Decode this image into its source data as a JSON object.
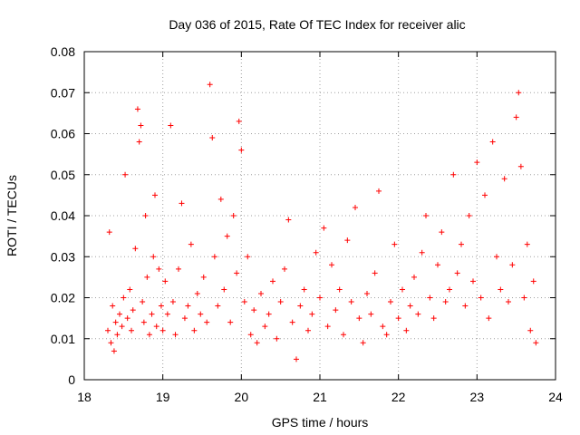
{
  "chart_data": {
    "type": "scatter",
    "title": "Day 036 of 2015, Rate Of TEC Index for receiver alic",
    "xlabel": "GPS time / hours",
    "ylabel": "ROTI / TECUs",
    "xlim": [
      18,
      24
    ],
    "ylim": [
      0,
      0.08
    ],
    "x_ticks": [
      18,
      19,
      20,
      21,
      22,
      23,
      24
    ],
    "x_tick_labels": [
      "18",
      "19",
      "20",
      "21",
      "22",
      "23",
      "24"
    ],
    "y_ticks": [
      0,
      0.01,
      0.02,
      0.03,
      0.04,
      0.05,
      0.06,
      0.07,
      0.08
    ],
    "y_tick_labels": [
      "0",
      "0.01",
      "0.02",
      "0.03",
      "0.04",
      "0.05",
      "0.06",
      "0.07",
      "0.08"
    ],
    "grid": true,
    "marker": "+",
    "color": "#ff0000",
    "series": [
      {
        "name": "ROTI",
        "x": [
          18.3,
          18.32,
          18.34,
          18.36,
          18.38,
          18.4,
          18.42,
          18.45,
          18.48,
          18.5,
          18.52,
          18.55,
          18.58,
          18.6,
          18.62,
          18.65,
          18.68,
          18.7,
          18.72,
          18.74,
          18.76,
          18.78,
          18.8,
          18.83,
          18.86,
          18.88,
          18.9,
          18.92,
          18.95,
          18.98,
          19.0,
          19.03,
          19.06,
          19.1,
          19.13,
          19.16,
          19.2,
          19.24,
          19.28,
          19.32,
          19.36,
          19.4,
          19.44,
          19.48,
          19.52,
          19.56,
          19.6,
          19.63,
          19.66,
          19.7,
          19.74,
          19.78,
          19.82,
          19.86,
          19.9,
          19.94,
          19.97,
          20.0,
          20.04,
          20.08,
          20.12,
          20.16,
          20.2,
          20.25,
          20.3,
          20.35,
          20.4,
          20.45,
          20.5,
          20.55,
          20.6,
          20.65,
          20.7,
          20.75,
          20.8,
          20.85,
          20.9,
          20.95,
          21.0,
          21.05,
          21.1,
          21.15,
          21.2,
          21.25,
          21.3,
          21.35,
          21.4,
          21.45,
          21.5,
          21.55,
          21.6,
          21.65,
          21.7,
          21.75,
          21.8,
          21.85,
          21.9,
          21.95,
          22.0,
          22.05,
          22.1,
          22.15,
          22.2,
          22.25,
          22.3,
          22.35,
          22.4,
          22.45,
          22.5,
          22.55,
          22.6,
          22.65,
          22.7,
          22.75,
          22.8,
          22.85,
          22.9,
          22.95,
          23.0,
          23.05,
          23.1,
          23.15,
          23.2,
          23.25,
          23.3,
          23.35,
          23.4,
          23.45,
          23.5,
          23.53,
          23.56,
          23.6,
          23.64,
          23.68,
          23.72,
          23.75
        ],
        "y": [
          0.012,
          0.036,
          0.009,
          0.018,
          0.007,
          0.014,
          0.011,
          0.016,
          0.013,
          0.02,
          0.05,
          0.015,
          0.022,
          0.012,
          0.017,
          0.032,
          0.066,
          0.058,
          0.062,
          0.019,
          0.014,
          0.04,
          0.025,
          0.011,
          0.016,
          0.03,
          0.045,
          0.013,
          0.027,
          0.018,
          0.012,
          0.024,
          0.016,
          0.062,
          0.019,
          0.011,
          0.027,
          0.043,
          0.015,
          0.018,
          0.033,
          0.012,
          0.021,
          0.016,
          0.025,
          0.014,
          0.072,
          0.059,
          0.03,
          0.018,
          0.044,
          0.022,
          0.035,
          0.014,
          0.04,
          0.026,
          0.063,
          0.056,
          0.019,
          0.03,
          0.011,
          0.017,
          0.009,
          0.021,
          0.013,
          0.016,
          0.024,
          0.01,
          0.019,
          0.027,
          0.039,
          0.014,
          0.005,
          0.018,
          0.022,
          0.012,
          0.016,
          0.031,
          0.02,
          0.037,
          0.013,
          0.028,
          0.017,
          0.022,
          0.011,
          0.034,
          0.019,
          0.042,
          0.015,
          0.009,
          0.021,
          0.016,
          0.026,
          0.046,
          0.013,
          0.011,
          0.019,
          0.033,
          0.015,
          0.022,
          0.012,
          0.018,
          0.025,
          0.016,
          0.031,
          0.04,
          0.02,
          0.015,
          0.028,
          0.036,
          0.019,
          0.022,
          0.05,
          0.026,
          0.033,
          0.018,
          0.04,
          0.024,
          0.053,
          0.02,
          0.045,
          0.015,
          0.058,
          0.03,
          0.022,
          0.049,
          0.019,
          0.028,
          0.064,
          0.07,
          0.052,
          0.02,
          0.033,
          0.012,
          0.024,
          0.009
        ]
      }
    ]
  }
}
